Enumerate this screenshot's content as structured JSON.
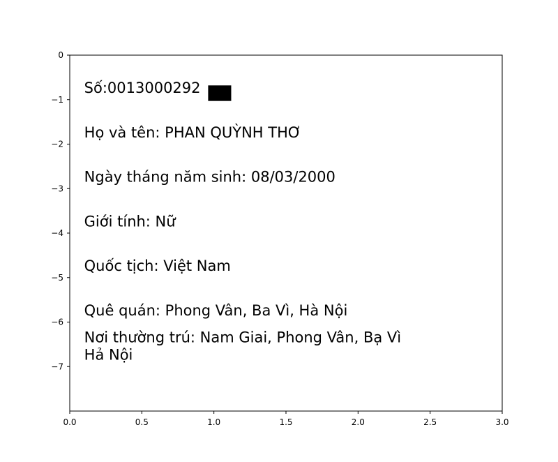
{
  "chart_data": {
    "type": "text",
    "xlim": [
      0.0,
      3.0
    ],
    "ylim": [
      -8.0,
      0.0
    ],
    "x_ticks": [
      0.0,
      0.5,
      1.0,
      1.5,
      2.0,
      2.5,
      3.0
    ],
    "x_tick_labels": [
      "0.0",
      "0.5",
      "1.0",
      "1.5",
      "2.0",
      "2.5",
      "3.0"
    ],
    "y_ticks": [
      0,
      -1,
      -2,
      -3,
      -4,
      -5,
      -6,
      -7
    ],
    "y_tick_labels": [
      "0",
      "−1",
      "−2",
      "−3",
      "−4",
      "−5",
      "−6",
      "−7"
    ],
    "grid": false,
    "title": "",
    "xlabel": "",
    "ylabel": "",
    "annotations": [
      {
        "x": 0.1,
        "y": -0.85,
        "lines": [
          "Số:0013000292"
        ]
      },
      {
        "x": 0.1,
        "y": -1.85,
        "lines": [
          "Họ và tên: PHAN QUỲNH THƠ"
        ]
      },
      {
        "x": 0.1,
        "y": -2.85,
        "lines": [
          "Ngày tháng năm sinh: 08/03/2000"
        ]
      },
      {
        "x": 0.1,
        "y": -3.85,
        "lines": [
          "Giới tính: Nữ"
        ]
      },
      {
        "x": 0.1,
        "y": -4.85,
        "lines": [
          "Quốc tịch: Việt Nam"
        ]
      },
      {
        "x": 0.1,
        "y": -5.85,
        "lines": [
          "Quê quán: Phong Vân, Ba Vì, Hà Nội"
        ]
      },
      {
        "x": 0.1,
        "y": -6.85,
        "lines": [
          "Nơi thường trú: Nam Giai, Phong Vân, Bạ Vì",
          "Hả Nội"
        ]
      }
    ],
    "redaction": {
      "x": [
        0.96,
        1.12
      ],
      "y": [
        -0.68,
        -1.03
      ],
      "color": "#000000"
    },
    "colors": {
      "text": "#000000",
      "axes": "#000000",
      "background": "#ffffff"
    }
  }
}
